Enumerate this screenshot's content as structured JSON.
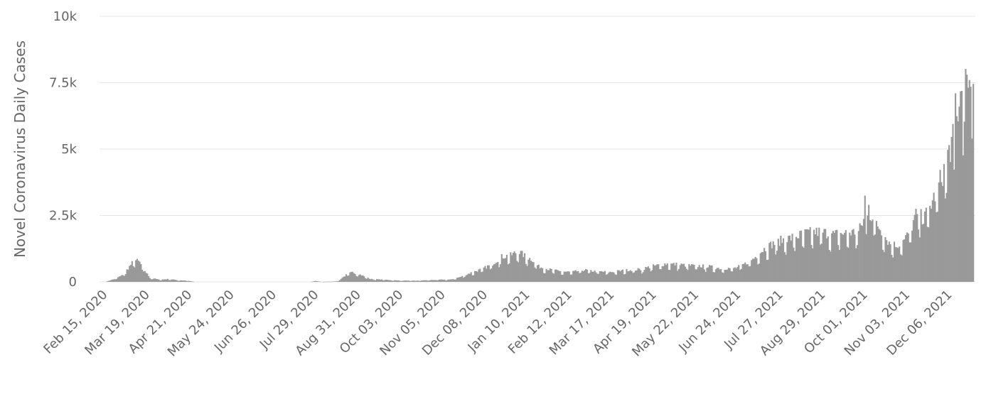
{
  "chart_data": {
    "type": "bar",
    "title": "",
    "xlabel": "",
    "ylabel": "Novel Coronavirus Daily Cases",
    "grid": true,
    "legend": "none",
    "bar_color": "#999999",
    "ylim": [
      0,
      10000
    ],
    "yticks": [
      0,
      2500,
      5000,
      7500,
      10000
    ],
    "ytick_labels": [
      "0",
      "2.5k",
      "5k",
      "7.5k",
      "10k"
    ],
    "x_start": "2020-02-15",
    "x_end": "2021-12-27",
    "x_tick_labels": [
      "Feb 15, 2020",
      "Mar 19, 2020",
      "Apr 21, 2020",
      "May 24, 2020",
      "Jun 26, 2020",
      "Jul 29, 2020",
      "Aug 31, 2020",
      "Oct 03, 2020",
      "Nov 05, 2020",
      "Dec 08, 2020",
      "Jan 10, 2021",
      "Feb 12, 2021",
      "Mar 17, 2021",
      "Apr 19, 2021",
      "May 22, 2021",
      "Jun 24, 2021",
      "Jul 27, 2021",
      "Aug 29, 2021",
      "Oct 01, 2021",
      "Nov 03, 2021",
      "Dec 06, 2021"
    ],
    "series": [
      {
        "values": [
          [
            "2020-02-15",
            0
          ],
          [
            "2020-02-22",
            100
          ],
          [
            "2020-02-29",
            250
          ],
          [
            "2020-03-05",
            550
          ],
          [
            "2020-03-09",
            800
          ],
          [
            "2020-03-13",
            700
          ],
          [
            "2020-03-17",
            400
          ],
          [
            "2020-03-21",
            150
          ],
          [
            "2020-03-28",
            80
          ],
          [
            "2020-04-05",
            100
          ],
          [
            "2020-04-12",
            60
          ],
          [
            "2020-04-20",
            40
          ],
          [
            "2020-04-25",
            0
          ],
          [
            "2020-07-25",
            0
          ],
          [
            "2020-07-29",
            30
          ],
          [
            "2020-08-03",
            0
          ],
          [
            "2020-08-15",
            20
          ],
          [
            "2020-08-19",
            150
          ],
          [
            "2020-08-23",
            280
          ],
          [
            "2020-08-27",
            340
          ],
          [
            "2020-08-31",
            300
          ],
          [
            "2020-09-05",
            200
          ],
          [
            "2020-09-10",
            100
          ],
          [
            "2020-09-20",
            80
          ],
          [
            "2020-10-01",
            50
          ],
          [
            "2020-10-15",
            40
          ],
          [
            "2020-10-25",
            60
          ],
          [
            "2020-11-05",
            80
          ],
          [
            "2020-11-12",
            80
          ],
          [
            "2020-11-20",
            180
          ],
          [
            "2020-11-28",
            330
          ],
          [
            "2020-12-06",
            450
          ],
          [
            "2020-12-14",
            620
          ],
          [
            "2020-12-22",
            900
          ],
          [
            "2020-12-29",
            950
          ],
          [
            "2021-01-04",
            1100
          ],
          [
            "2021-01-10",
            900
          ],
          [
            "2021-01-15",
            800
          ],
          [
            "2021-01-20",
            550
          ],
          [
            "2021-01-28",
            450
          ],
          [
            "2021-02-05",
            380
          ],
          [
            "2021-02-15",
            350
          ],
          [
            "2021-02-25",
            430
          ],
          [
            "2021-03-05",
            380
          ],
          [
            "2021-03-17",
            350
          ],
          [
            "2021-03-30",
            420
          ],
          [
            "2021-04-10",
            450
          ],
          [
            "2021-04-19",
            560
          ],
          [
            "2021-04-30",
            650
          ],
          [
            "2021-05-10",
            620
          ],
          [
            "2021-05-22",
            580
          ],
          [
            "2021-06-01",
            560
          ],
          [
            "2021-06-12",
            480
          ],
          [
            "2021-06-24",
            500
          ],
          [
            "2021-07-01",
            650
          ],
          [
            "2021-07-08",
            850
          ],
          [
            "2021-07-15",
            1150
          ],
          [
            "2021-07-22",
            1350
          ],
          [
            "2021-07-30",
            1500
          ],
          [
            "2021-08-08",
            1600
          ],
          [
            "2021-08-18",
            1750
          ],
          [
            "2021-08-29",
            1800
          ],
          [
            "2021-09-08",
            1700
          ],
          [
            "2021-09-18",
            1750
          ],
          [
            "2021-09-28",
            1800
          ],
          [
            "2021-10-03",
            2300
          ],
          [
            "2021-10-08",
            2400
          ],
          [
            "2021-10-15",
            1900
          ],
          [
            "2021-10-22",
            1400
          ],
          [
            "2021-10-28",
            1300
          ],
          [
            "2021-11-03",
            1500
          ],
          [
            "2021-11-08",
            1900
          ],
          [
            "2021-11-12",
            2400
          ],
          [
            "2021-11-18",
            2300
          ],
          [
            "2021-11-22",
            2600
          ],
          [
            "2021-11-26",
            3000
          ],
          [
            "2021-11-30",
            3500
          ],
          [
            "2021-12-04",
            4000
          ],
          [
            "2021-12-08",
            4700
          ],
          [
            "2021-12-12",
            5200
          ],
          [
            "2021-12-16",
            6500
          ],
          [
            "2021-12-20",
            7400
          ],
          [
            "2021-12-23",
            7300
          ],
          [
            "2021-12-27",
            7000
          ]
        ],
        "spikes": [
          [
            "2021-10-03",
            3250
          ],
          [
            "2021-10-06",
            2900
          ],
          [
            "2021-11-19",
            2650
          ],
          [
            "2021-12-13",
            7100
          ],
          [
            "2021-12-16",
            6600
          ],
          [
            "2021-12-22",
            7800
          ],
          [
            "2021-12-24",
            7600
          ],
          [
            "2021-12-25",
            7350
          ],
          [
            "2021-12-27",
            7450
          ]
        ]
      }
    ]
  }
}
